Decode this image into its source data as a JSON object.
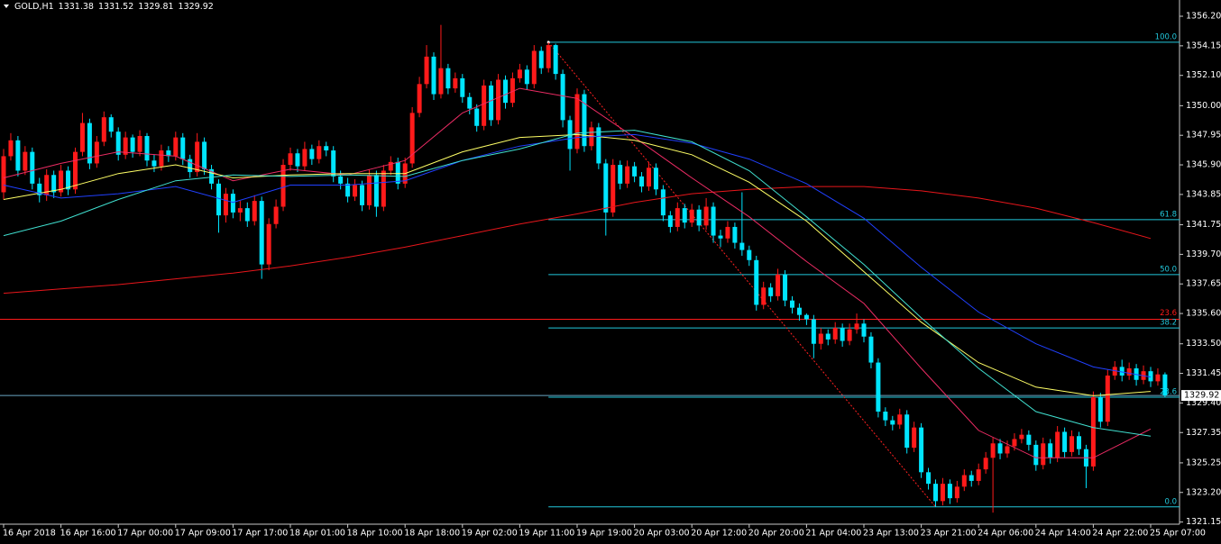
{
  "chart_data": {
    "type": "candlestick",
    "title": "GOLD,H1",
    "quote": [
      1331.38,
      1331.52,
      1329.81,
      1329.92
    ],
    "up_color": "#ff1a1a",
    "down_color": "#00e5ff",
    "ylim": [
      1321.0,
      1357.2
    ],
    "yticks": [
      {
        "value": 1356.2,
        "label": "1356.20"
      },
      1354.15,
      {
        "value": 1352.1,
        "label": "1352.10"
      },
      {
        "value": 1350,
        "label": "1350.00"
      },
      1347.95,
      {
        "value": 1345.9,
        "label": "1345.90"
      },
      1343.85,
      1341.75,
      {
        "value": 1339.7,
        "label": "1339.70"
      },
      1337.65,
      {
        "value": 1335.6,
        "label": "1335.60"
      },
      {
        "value": 1333.5,
        "label": "1333.50"
      },
      1331.45,
      {
        "value": 1329.4,
        "label": "1329.40"
      },
      1327.35,
      1325.25,
      {
        "value": 1323.2,
        "label": "1323.20"
      },
      1321.15
    ],
    "x_labels": [
      "16 Apr 2018",
      "16 Apr 16:00",
      "17 Apr 00:00",
      "17 Apr 09:00",
      "17 Apr 17:00",
      "18 Apr 01:00",
      "18 Apr 10:00",
      "18 Apr 18:00",
      "19 Apr 02:00",
      "19 Apr 11:00",
      "19 Apr 19:00",
      "20 Apr 03:00",
      "20 Apr 12:00",
      "20 Apr 20:00",
      "21 Apr 04:00",
      "23 Apr 13:00",
      "23 Apr 21:00",
      "24 Apr 06:00",
      "24 Apr 14:00",
      "24 Apr 22:00",
      "25 Apr 07:00"
    ],
    "open": [
      1344.0,
      1346.5,
      1347.6,
      1345.5,
      1346.8,
      1344.6,
      1343.8,
      1345.2,
      1344.0,
      1345.5,
      1344.2,
      1346.8,
      1348.8,
      1346.0,
      1347.5,
      1349.2,
      1348.2,
      1346.6,
      1347.8,
      1346.8,
      1347.9,
      1346.2,
      1345.8,
      1346.9,
      1346.5,
      1347.8,
      1346.3,
      1345.4,
      1347.5,
      1345.6,
      1344.6,
      1342.4,
      1343.9,
      1342.6,
      1342.9,
      1342.0,
      1343.4,
      1339.0,
      1341.8,
      1343.0,
      1345.9,
      1346.7,
      1345.8,
      1347.0,
      1346.3,
      1347.2,
      1346.9,
      1345.1,
      1344.6,
      1343.7,
      1344.5,
      1343.1,
      1345.2,
      1343.0,
      1345.5,
      1346.1,
      1344.6,
      1346.0,
      1349.5,
      1351.5,
      1353.4,
      1350.8,
      1352.6,
      1351.2,
      1351.9,
      1350.6,
      1349.8,
      1348.6,
      1351.4,
      1349.0,
      1351.8,
      1350.2,
      1351.9,
      1352.5,
      1351.5,
      1353.8,
      1352.6,
      1354.2,
      1352.2,
      1349.0,
      1347.0,
      1350.8,
      1347.2,
      1348.5,
      1346.0,
      1342.6,
      1345.9,
      1344.6,
      1345.8,
      1345.1,
      1344.4,
      1345.7,
      1344.2,
      1342.4,
      1341.6,
      1342.9,
      1341.9,
      1342.8,
      1341.7,
      1343.0,
      1341.0,
      1340.8,
      1341.6,
      1340.5,
      1340.0,
      1339.3,
      1336.2,
      1337.4,
      1336.8,
      1338.3,
      1336.5,
      1336.0,
      1335.5,
      1335.2,
      1333.5,
      1334.2,
      1333.8,
      1334.6,
      1333.7,
      1334.5,
      1334.9,
      1334.0,
      1332.2,
      1328.8,
      1328.2,
      1327.9,
      1328.6,
      1326.3,
      1327.7,
      1324.6,
      1323.8,
      1322.6,
      1323.8,
      1322.8,
      1323.6,
      1324.4,
      1324.0,
      1324.8,
      1325.6,
      1326.6,
      1325.9,
      1326.4,
      1326.9,
      1327.2,
      1326.5,
      1325.1,
      1326.6,
      1325.6,
      1327.4,
      1326.0,
      1327.1,
      1326.2,
      1325.0,
      1329.8,
      1328.1,
      1331.3,
      1331.9,
      1331.3,
      1331.8,
      1331.0,
      1331.6,
      1330.9,
      1331.38
    ],
    "high": [
      1347.0,
      1348.1,
      1347.9,
      1347.2,
      1347.1,
      1345.0,
      1345.6,
      1345.5,
      1345.9,
      1345.8,
      1347.1,
      1349.5,
      1349.1,
      1347.9,
      1349.6,
      1349.4,
      1348.5,
      1348.2,
      1348.0,
      1348.3,
      1348.1,
      1346.6,
      1347.3,
      1347.2,
      1348.2,
      1348.1,
      1346.6,
      1348.1,
      1347.8,
      1345.9,
      1344.9,
      1344.3,
      1344.2,
      1343.4,
      1343.3,
      1343.8,
      1343.7,
      1342.2,
      1343.5,
      1346.3,
      1347.1,
      1347.0,
      1347.5,
      1347.3,
      1347.6,
      1347.5,
      1347.2,
      1345.5,
      1345.0,
      1344.9,
      1344.8,
      1345.6,
      1345.5,
      1345.9,
      1346.5,
      1346.4,
      1346.4,
      1349.9,
      1352.0,
      1354.2,
      1353.7,
      1355.6,
      1352.9,
      1352.3,
      1352.2,
      1350.9,
      1350.1,
      1351.8,
      1351.7,
      1352.2,
      1352.1,
      1352.3,
      1352.9,
      1352.8,
      1354.2,
      1354.1,
      1354.4,
      1354.3,
      1352.5,
      1349.3,
      1351.2,
      1351.1,
      1348.9,
      1348.8,
      1346.3,
      1346.3,
      1346.2,
      1346.2,
      1346.1,
      1345.4,
      1346.1,
      1346.0,
      1344.5,
      1342.7,
      1343.3,
      1343.2,
      1343.2,
      1343.1,
      1343.6,
      1343.3,
      1341.4,
      1342.0,
      1341.9,
      1344.0,
      1340.3,
      1339.6,
      1337.8,
      1337.7,
      1338.7,
      1338.6,
      1336.8,
      1336.3,
      1335.6,
      1335.5,
      1334.6,
      1334.5,
      1335.0,
      1334.9,
      1334.9,
      1335.6,
      1335.2,
      1334.3,
      1332.5,
      1329.1,
      1328.5,
      1329.0,
      1328.9,
      1328.1,
      1328.0,
      1324.9,
      1324.1,
      1324.2,
      1324.1,
      1324.0,
      1324.8,
      1324.7,
      1325.2,
      1326.0,
      1327.0,
      1326.9,
      1326.8,
      1327.3,
      1327.6,
      1327.5,
      1326.8,
      1327.0,
      1326.9,
      1327.8,
      1327.7,
      1327.5,
      1327.4,
      1326.5,
      1330.2,
      1330.1,
      1331.7,
      1332.3,
      1332.4,
      1332.2,
      1332.1,
      1332.0,
      1331.9,
      1331.8,
      1331.52
    ],
    "low": [
      1343.5,
      1346.2,
      1345.1,
      1345.2,
      1344.2,
      1343.3,
      1343.4,
      1343.6,
      1343.7,
      1343.8,
      1343.9,
      1346.5,
      1345.6,
      1345.7,
      1347.2,
      1347.8,
      1346.2,
      1346.3,
      1346.4,
      1346.5,
      1345.8,
      1345.4,
      1345.5,
      1346.1,
      1346.2,
      1345.9,
      1345.0,
      1345.1,
      1345.2,
      1344.2,
      1341.2,
      1341.9,
      1342.2,
      1342.0,
      1341.6,
      1341.7,
      1338.0,
      1338.6,
      1341.5,
      1342.7,
      1345.5,
      1345.4,
      1345.5,
      1345.9,
      1346.0,
      1346.5,
      1344.7,
      1344.2,
      1343.3,
      1343.4,
      1342.7,
      1342.8,
      1342.3,
      1342.7,
      1345.2,
      1344.2,
      1344.3,
      1345.7,
      1349.2,
      1351.2,
      1350.4,
      1350.5,
      1350.8,
      1350.9,
      1350.2,
      1349.4,
      1348.2,
      1348.3,
      1348.6,
      1348.7,
      1349.8,
      1349.9,
      1351.6,
      1351.1,
      1351.2,
      1352.2,
      1352.3,
      1351.8,
      1348.5,
      1345.5,
      1346.7,
      1346.8,
      1346.9,
      1345.6,
      1341.0,
      1342.3,
      1344.2,
      1344.3,
      1344.7,
      1344.0,
      1344.1,
      1343.8,
      1342.0,
      1341.2,
      1341.3,
      1341.5,
      1341.6,
      1341.3,
      1341.4,
      1340.5,
      1340.2,
      1340.5,
      1340.1,
      1339.6,
      1338.9,
      1335.8,
      1335.9,
      1336.4,
      1336.5,
      1336.1,
      1335.6,
      1335.1,
      1334.8,
      1332.5,
      1333.1,
      1333.4,
      1333.5,
      1333.3,
      1333.4,
      1334.2,
      1333.6,
      1331.8,
      1328.4,
      1327.8,
      1327.5,
      1327.6,
      1325.9,
      1326.0,
      1324.2,
      1323.4,
      1322.2,
      1322.3,
      1322.4,
      1322.5,
      1323.3,
      1323.6,
      1323.7,
      1324.5,
      1321.8,
      1325.5,
      1325.6,
      1326.1,
      1326.6,
      1326.1,
      1324.7,
      1324.8,
      1325.2,
      1325.3,
      1325.6,
      1325.7,
      1325.8,
      1323.5,
      1324.7,
      1327.7,
      1327.8,
      1331.0,
      1330.9,
      1331.0,
      1330.6,
      1330.7,
      1330.5,
      1330.6,
      1329.81
    ],
    "close": [
      1346.5,
      1347.6,
      1345.5,
      1346.8,
      1344.6,
      1343.8,
      1345.2,
      1344.0,
      1345.5,
      1344.2,
      1346.8,
      1348.8,
      1346.0,
      1347.5,
      1349.2,
      1348.2,
      1346.6,
      1347.8,
      1346.8,
      1347.9,
      1346.2,
      1345.8,
      1346.9,
      1346.5,
      1347.8,
      1346.3,
      1345.4,
      1347.5,
      1345.6,
      1344.6,
      1342.4,
      1343.9,
      1342.6,
      1342.9,
      1342.0,
      1343.4,
      1339.0,
      1341.8,
      1343.0,
      1345.9,
      1346.7,
      1345.8,
      1347.0,
      1346.3,
      1347.2,
      1346.9,
      1345.1,
      1344.6,
      1343.7,
      1344.5,
      1343.1,
      1345.2,
      1343.0,
      1345.5,
      1346.1,
      1344.6,
      1346.0,
      1349.5,
      1351.5,
      1353.4,
      1350.8,
      1352.6,
      1351.2,
      1351.9,
      1350.6,
      1349.8,
      1348.6,
      1351.4,
      1349.0,
      1351.8,
      1350.2,
      1351.9,
      1352.5,
      1351.5,
      1353.8,
      1352.6,
      1354.2,
      1352.2,
      1349.0,
      1347.0,
      1350.8,
      1347.2,
      1348.5,
      1346.0,
      1342.6,
      1345.9,
      1344.6,
      1345.8,
      1345.1,
      1344.4,
      1345.7,
      1344.2,
      1342.4,
      1341.6,
      1342.9,
      1341.9,
      1342.8,
      1341.7,
      1343.0,
      1341.0,
      1340.8,
      1341.6,
      1340.5,
      1340.0,
      1339.3,
      1336.2,
      1337.4,
      1336.8,
      1338.3,
      1336.5,
      1336.0,
      1335.5,
      1335.2,
      1333.5,
      1334.2,
      1333.8,
      1334.6,
      1333.7,
      1334.5,
      1334.9,
      1334.0,
      1332.2,
      1328.8,
      1328.2,
      1327.9,
      1328.6,
      1326.3,
      1327.7,
      1324.6,
      1323.8,
      1322.6,
      1323.8,
      1322.8,
      1323.6,
      1324.4,
      1324.0,
      1324.8,
      1325.6,
      1326.6,
      1325.9,
      1326.4,
      1326.9,
      1327.2,
      1326.5,
      1325.1,
      1326.6,
      1325.6,
      1327.4,
      1326.0,
      1327.1,
      1326.2,
      1325.0,
      1329.8,
      1328.1,
      1331.3,
      1331.9,
      1331.3,
      1331.8,
      1331.0,
      1331.6,
      1330.9,
      1331.38,
      1329.92
    ],
    "series": [
      {
        "color": "#e8161b",
        "values": [
          1337.0,
          1337.3,
          1337.6,
          1338.0,
          1338.4,
          1338.9,
          1339.5,
          1340.2,
          1341.0,
          1341.8,
          1342.5,
          1343.3,
          1343.9,
          1344.2,
          1344.4,
          1344.4,
          1344.1,
          1343.6,
          1342.9,
          1341.9,
          1340.8
        ]
      },
      {
        "color": "#ec2c64",
        "values": [
          1345.0,
          1346.0,
          1346.8,
          1346.5,
          1344.8,
          1345.6,
          1345.2,
          1346.2,
          1349.5,
          1351.2,
          1350.5,
          1347.8,
          1345.0,
          1342.3,
          1339.2,
          1336.3,
          1331.8,
          1327.5,
          1325.6,
          1325.6,
          1327.6
        ]
      },
      {
        "color": "#ffff66",
        "values": [
          1343.5,
          1344.2,
          1345.3,
          1345.9,
          1345.0,
          1345.2,
          1345.3,
          1345.3,
          1346.8,
          1347.8,
          1348.0,
          1347.6,
          1346.6,
          1344.7,
          1342.0,
          1338.5,
          1335.0,
          1332.2,
          1330.5,
          1329.9,
          1330.2
        ]
      },
      {
        "color": "#2040ff",
        "values": [
          1344.5,
          1343.6,
          1343.9,
          1344.4,
          1343.3,
          1344.5,
          1344.5,
          1344.8,
          1346.2,
          1347.2,
          1347.8,
          1348.0,
          1347.4,
          1346.3,
          1344.6,
          1342.2,
          1338.8,
          1335.7,
          1333.5,
          1331.9,
          1331.2
        ]
      },
      {
        "color": "#40e0d0",
        "values": [
          1341.0,
          1342.0,
          1343.5,
          1344.8,
          1345.2,
          1345.1,
          1345.2,
          1345.1,
          1346.2,
          1347.0,
          1348.1,
          1348.3,
          1347.5,
          1345.5,
          1342.3,
          1339.0,
          1335.3,
          1331.8,
          1328.8,
          1327.7,
          1327.1
        ]
      }
    ],
    "fibonacci": {
      "color": "#22c8dc",
      "line_color": "#ff2020",
      "levels": [
        {
          "label": "100.0",
          "price": 1354.4
        },
        {
          "label": "61.8",
          "price": 1342.1
        },
        {
          "label": "50.0",
          "price": 1338.3
        },
        {
          "label": "38.2",
          "price": 1334.6
        },
        {
          "label": "23.6",
          "price": 1329.8
        },
        {
          "label": "0.0",
          "price": 1322.2
        }
      ]
    },
    "hline": {
      "label": "23.6",
      "price": 1335.2,
      "color": "#ff1a1a"
    },
    "bid": {
      "price": 1329.92,
      "color": "#6aa6c4"
    }
  }
}
